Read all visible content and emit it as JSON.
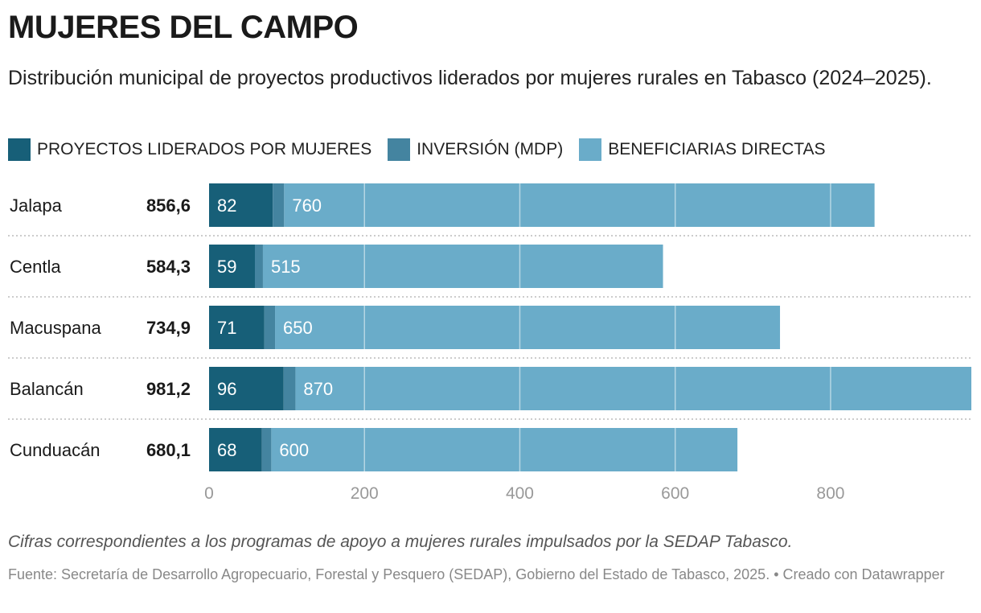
{
  "title": "MUJERES DEL CAMPO",
  "subtitle": "Distribución municipal de proyectos productivos liderados por mujeres rurales en Tabasco (2024–2025).",
  "note": "Cifras correspondientes a los programas de apoyo a mujeres rurales impulsados por la SEDAP Tabasco.",
  "source": "Fuente: Secretaría de Desarrollo Agropecuario, Forestal y Pesquero (SEDAP), Gobierno del Estado de Tabasco, 2025. • Creado con Datawrapper",
  "chart_data": {
    "type": "bar",
    "orientation": "horizontal",
    "stacked": true,
    "categories": [
      "Jalapa",
      "Centla",
      "Macuspana",
      "Balancán",
      "Cunduacán"
    ],
    "totals": [
      "856,6",
      "584,3",
      "734,9",
      "981,2",
      "680,1"
    ],
    "series": [
      {
        "name": "PROYECTOS LIDERADOS POR MUJERES",
        "color": "#175f78",
        "values": [
          82,
          59,
          71,
          96,
          68
        ]
      },
      {
        "name": "INVERSIÓN (MDP)",
        "color": "#4484a0",
        "values": [
          14.6,
          10.3,
          13.9,
          15.2,
          12.1
        ]
      },
      {
        "name": "BENEFICIARIAS DIRECTAS",
        "color": "#6aacc9",
        "values": [
          760,
          515,
          650,
          870,
          600
        ]
      }
    ],
    "labeled_series": [
      0,
      2
    ],
    "xlim": [
      0,
      981.2
    ],
    "xticks": [
      0,
      200,
      400,
      600,
      800
    ],
    "grid": true,
    "legend": "top-left"
  }
}
